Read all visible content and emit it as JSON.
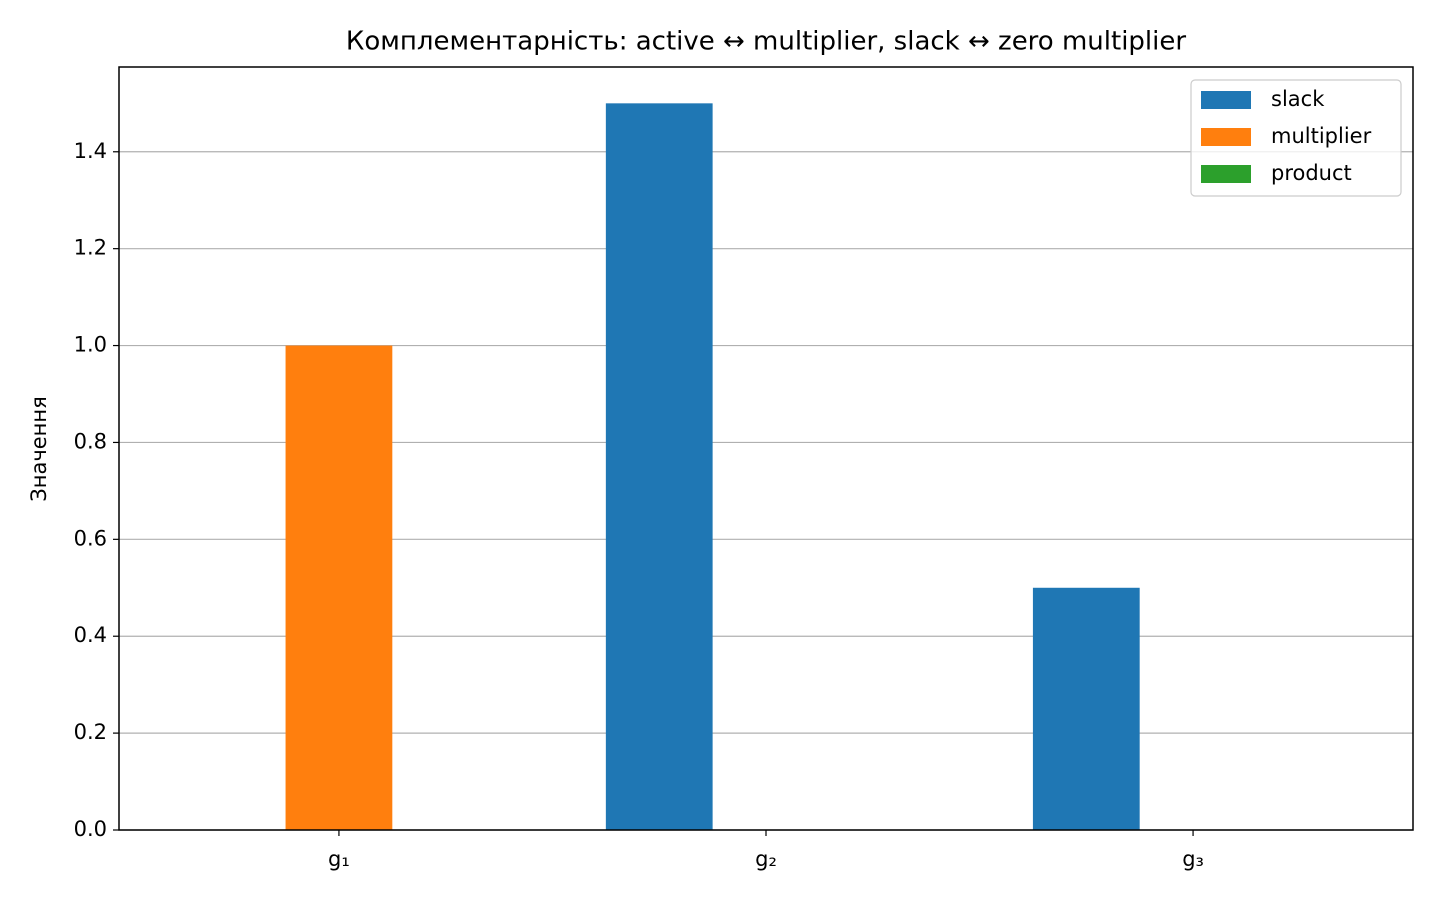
{
  "chart_data": {
    "type": "bar",
    "title": "Комплементарність: active ↔ multiplier, slack ↔ zero multiplier",
    "y_label": "Значення",
    "categories": [
      "g₁",
      "g₂",
      "g₃"
    ],
    "series": [
      {
        "name": "slack",
        "color": "#1f77b4",
        "values": [
          0,
          1.5,
          0.5
        ]
      },
      {
        "name": "multiplier",
        "color": "#ff7f0e",
        "values": [
          1.0,
          0,
          0
        ]
      },
      {
        "name": "product",
        "color": "#2ca02c",
        "values": [
          0,
          0,
          0
        ]
      }
    ],
    "ylim": [
      0,
      1.575
    ],
    "yticks": [
      {
        "value": 0,
        "label": "0.0"
      },
      0.2,
      0.4,
      0.6,
      0.8,
      {
        "value": 1,
        "label": "1.0"
      },
      1.2,
      1.4
    ],
    "grid": true,
    "legend": "upper right"
  }
}
